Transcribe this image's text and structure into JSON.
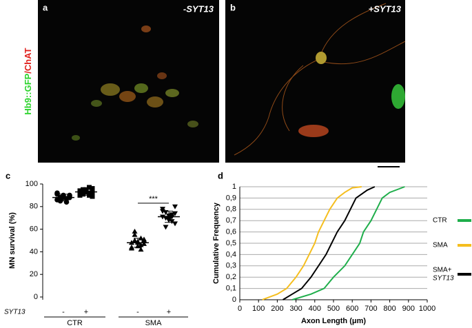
{
  "images": [
    {
      "label": "a",
      "condition": "-SYT13"
    },
    {
      "label": "b",
      "condition": "+SYT13"
    }
  ],
  "stain_green": "Hb9::GFP",
  "stain_red": "/ChAT",
  "chart_data": [
    {
      "type": "dot",
      "panel": "c",
      "ylabel": "MN survival (%)",
      "ylim": [
        0,
        100
      ],
      "yticks": [
        0,
        20,
        40,
        60,
        80,
        100
      ],
      "row_label": "SYT13",
      "signs": [
        "-",
        "+",
        "-",
        "+"
      ],
      "groups": [
        "CTR",
        "SMA"
      ],
      "series": [
        {
          "marker": "circle",
          "values": [
            86,
            88,
            90,
            87,
            89,
            91,
            85,
            88,
            87,
            90,
            92,
            86,
            89,
            84,
            88
          ],
          "mean": 88,
          "error": 3
        },
        {
          "marker": "square",
          "values": [
            90,
            93,
            95,
            92,
            96,
            94,
            91,
            93,
            97,
            89,
            92,
            95,
            94,
            90,
            93
          ],
          "mean": 93,
          "error": 3
        },
        {
          "marker": "triangle",
          "values": [
            48,
            50,
            45,
            52,
            47,
            43,
            55,
            49,
            46,
            51,
            44,
            58,
            48,
            42,
            50
          ],
          "mean": 48,
          "error": 4
        },
        {
          "marker": "triangle-down",
          "values": [
            71,
            75,
            68,
            73,
            65,
            78,
            70,
            72,
            67,
            74,
            76,
            62,
            69,
            71,
            80
          ],
          "mean": 71,
          "error": 5
        }
      ],
      "significance": {
        "text": "***",
        "y": 83
      }
    },
    {
      "type": "line",
      "panel": "d",
      "xlabel": "Axon Length (μm)",
      "ylabel": "Cumulative Frequency",
      "xlim": [
        0,
        1000
      ],
      "xticks": [
        0,
        100,
        200,
        300,
        400,
        500,
        600,
        700,
        800,
        900,
        1000
      ],
      "ylim": [
        0,
        1
      ],
      "yticks": [
        0,
        {
          "value": 0.1,
          "label": "0,1"
        },
        {
          "value": 0.2,
          "label": "0,2"
        },
        {
          "value": 0.3,
          "label": "0,3"
        },
        {
          "value": 0.4,
          "label": "0,4"
        },
        {
          "value": 0.5,
          "label": "0,5"
        },
        {
          "value": 0.6,
          "label": "0,6"
        },
        {
          "value": 0.7,
          "label": "0,7"
        },
        {
          "value": 0.8,
          "label": "0,8"
        },
        {
          "value": 0.9,
          "label": "0,9"
        },
        1
      ],
      "grid": true,
      "series": [
        {
          "name": "CTR",
          "color": "#1fae4b",
          "x": [
            280,
            380,
            450,
            500,
            560,
            600,
            640,
            660,
            700,
            730,
            760,
            800,
            880
          ],
          "values": [
            0,
            0.05,
            0.1,
            0.2,
            0.3,
            0.4,
            0.5,
            0.6,
            0.7,
            0.8,
            0.9,
            0.95,
            1
          ]
        },
        {
          "name": "SMA",
          "color": "#f5be1e",
          "x": [
            120,
            200,
            250,
            300,
            340,
            370,
            400,
            420,
            450,
            480,
            520,
            560,
            600,
            650
          ],
          "values": [
            0,
            0.05,
            0.1,
            0.2,
            0.3,
            0.4,
            0.5,
            0.6,
            0.7,
            0.8,
            0.9,
            0.95,
            0.99,
            1
          ]
        },
        {
          "name": "SMA+",
          "name_italic": "SYT13",
          "color": "#000000",
          "x": [
            230,
            280,
            330,
            380,
            420,
            460,
            490,
            520,
            560,
            590,
            620,
            680,
            720
          ],
          "values": [
            0,
            0.05,
            0.1,
            0.2,
            0.3,
            0.4,
            0.5,
            0.6,
            0.7,
            0.8,
            0.9,
            0.97,
            1
          ]
        }
      ]
    }
  ]
}
